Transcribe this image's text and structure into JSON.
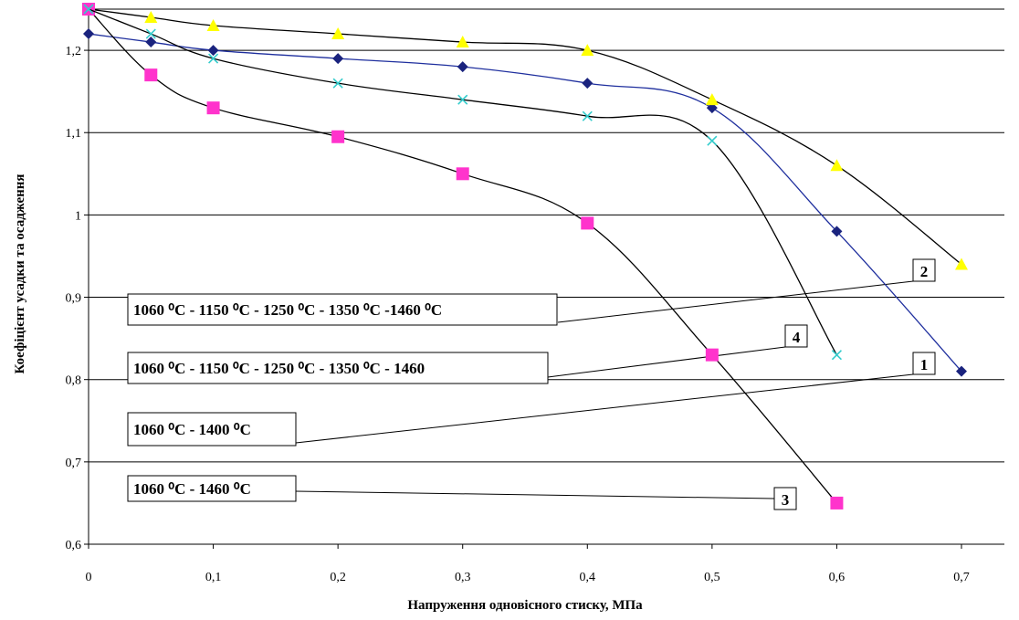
{
  "chart_data": {
    "type": "line",
    "xlabel": "Напруження одновісного стиску, МПа",
    "ylabel": "Коефіцієнт усадки та осадження",
    "xlim": [
      0,
      0.7
    ],
    "ylim": [
      0.6,
      1.25
    ],
    "x_ticks": [
      "0",
      "0,1",
      "0,2",
      "0,3",
      "0,4",
      "0,5",
      "0,6",
      "0,7"
    ],
    "y_ticks": [
      "0,6",
      "0,7",
      "0,8",
      "0,9",
      "1",
      "1,1",
      "1,2"
    ],
    "grid": "horizontal",
    "series": [
      {
        "id": "1",
        "marker": "diamond",
        "marker_color": "#1a237e",
        "line_color": "#1f2f9e",
        "x": [
          0,
          0.05,
          0.1,
          0.2,
          0.3,
          0.4,
          0.5,
          0.6,
          0.7
        ],
        "y": [
          1.22,
          1.21,
          1.2,
          1.19,
          1.18,
          1.16,
          1.13,
          0.98,
          0.81
        ]
      },
      {
        "id": "2",
        "marker": "triangle",
        "marker_color": "#ffff00",
        "line_color": "#000000",
        "x": [
          0,
          0.05,
          0.1,
          0.2,
          0.3,
          0.4,
          0.5,
          0.6,
          0.7
        ],
        "y": [
          1.25,
          1.24,
          1.23,
          1.22,
          1.21,
          1.2,
          1.14,
          1.06,
          0.94
        ]
      },
      {
        "id": "3",
        "marker": "square",
        "marker_color": "#ff33cc",
        "line_color": "#000000",
        "x": [
          0,
          0.05,
          0.1,
          0.2,
          0.3,
          0.4,
          0.5,
          0.6
        ],
        "y": [
          1.25,
          1.17,
          1.13,
          1.095,
          1.05,
          0.99,
          0.83,
          0.65
        ]
      },
      {
        "id": "4",
        "marker": "x",
        "marker_color": "#33cccc",
        "line_color": "#000000",
        "x": [
          0,
          0.05,
          0.1,
          0.2,
          0.3,
          0.4,
          0.5,
          0.6
        ],
        "y": [
          1.25,
          1.22,
          1.19,
          1.16,
          1.14,
          1.12,
          1.09,
          0.83
        ]
      }
    ],
    "annotations": [
      {
        "text": "1060 ⁰C - 1150 ⁰C - 1250 ⁰C - 1350 ⁰C -1460 ⁰C",
        "series": "2"
      },
      {
        "text": "1060 ⁰C - 1150 ⁰C - 1250 ⁰C - 1350 ⁰C - 1460",
        "series": "4"
      },
      {
        "text": "1060 ⁰C - 1400 ⁰C",
        "series": "1"
      },
      {
        "text": "1060 ⁰C - 1460 ⁰C",
        "series": "3"
      }
    ]
  }
}
